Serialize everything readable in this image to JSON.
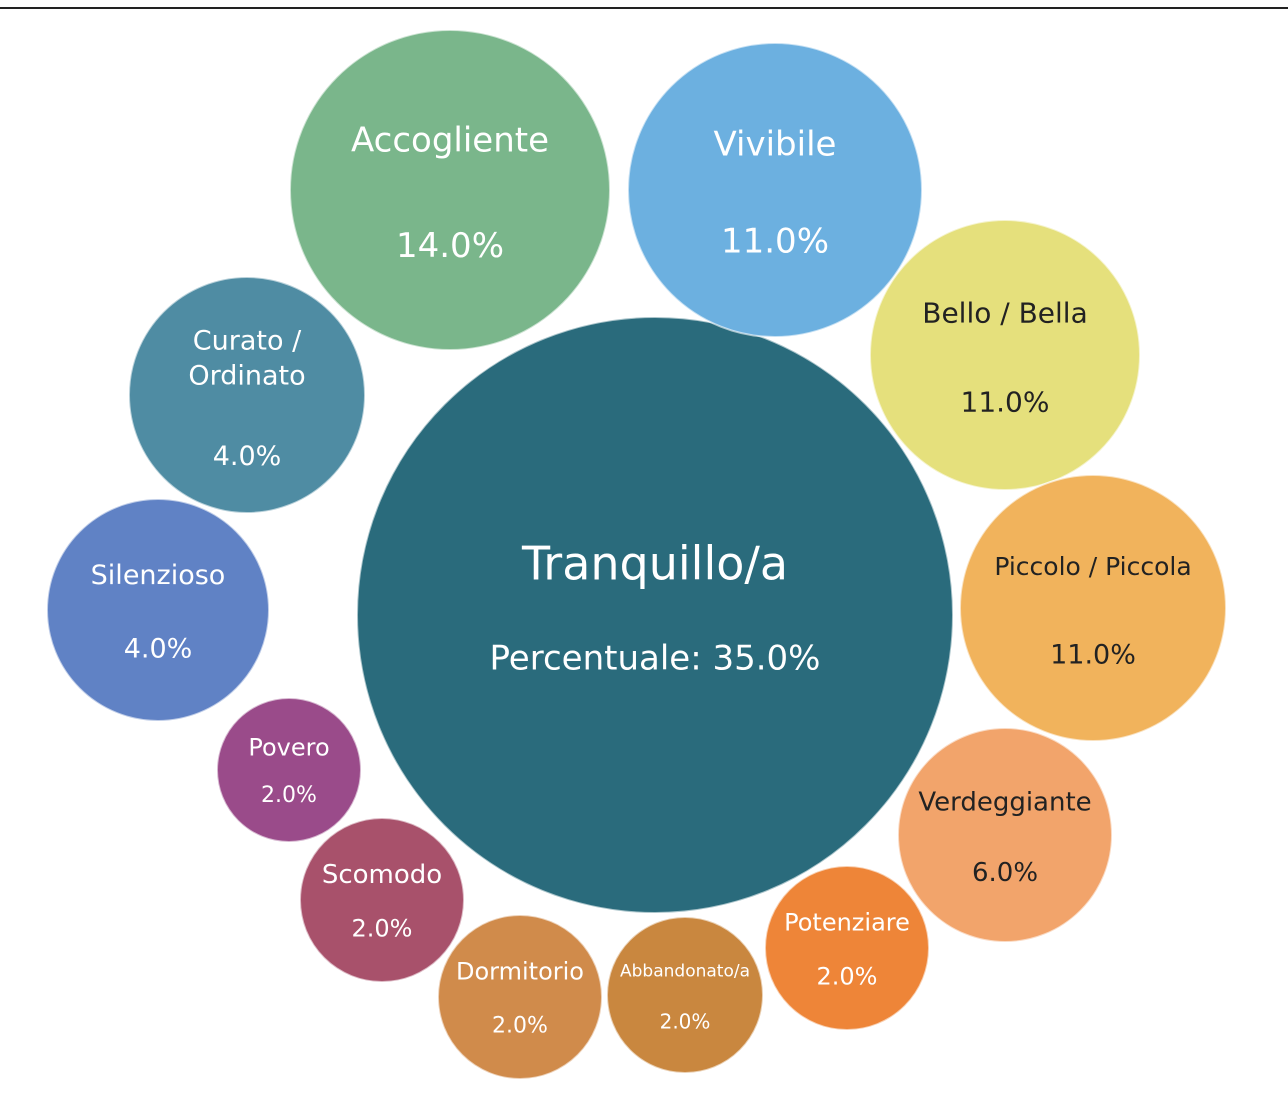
{
  "chart_data": {
    "type": "packed-bubble",
    "categories": [
      "Tranquillo/a",
      "Accogliente",
      "Vivibile",
      "Bello / Bella",
      "Piccolo / Piccola",
      "Verdeggiante",
      "Potenziare",
      "Abbandonato/a",
      "Dormitorio",
      "Scomodo",
      "Povero",
      "Silenzioso",
      "Curato / Ordinato"
    ],
    "values": [
      35,
      14,
      11,
      11,
      11,
      6,
      2,
      2,
      2,
      2,
      2,
      4,
      4
    ],
    "value_labels": [
      "Percentuale: 35.0%",
      "14.0%",
      "11.0%",
      "11.0%",
      "11.0%",
      "6.0%",
      "2.0%",
      "2.0%",
      "2.0%",
      "2.0%",
      "2.0%",
      "4.0%",
      "4.0%"
    ],
    "colors": [
      "#2a6b7c",
      "#7ab68b",
      "#6cb0e0",
      "#e5e07c",
      "#f1b35c",
      "#f2a46b",
      "#ee8538",
      "#c9873f",
      "#d08b4b",
      "#a8516b",
      "#9a4b8a",
      "#6082c5",
      "#4f8ca3"
    ]
  }
}
